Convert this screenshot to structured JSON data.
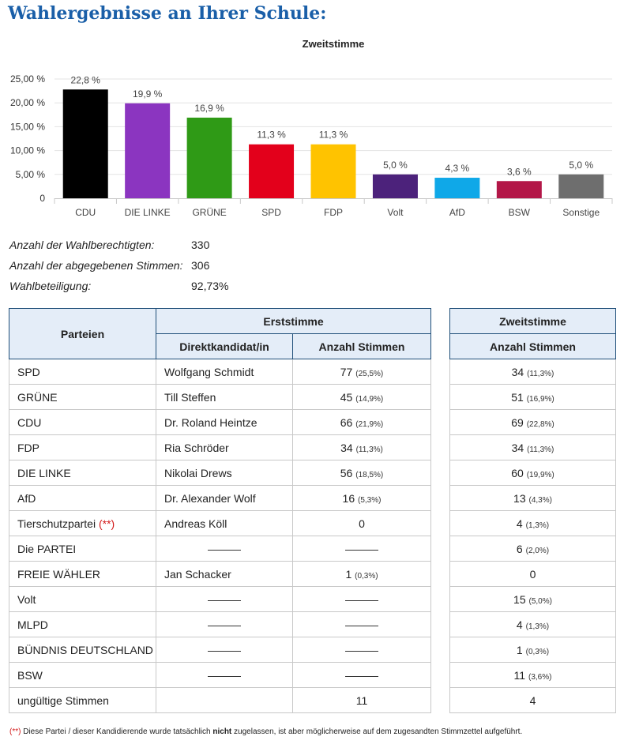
{
  "page": {
    "title": "Wahlergebnisse an Ihrer Schule:"
  },
  "chart_data": {
    "type": "bar",
    "title": "Zweitstimme",
    "categories": [
      "CDU",
      "DIE LINKE",
      "GRÜNE",
      "SPD",
      "FDP",
      "Volt",
      "AfD",
      "BSW",
      "Sonstige"
    ],
    "values": [
      22.8,
      19.9,
      16.9,
      11.3,
      11.3,
      5.0,
      4.3,
      3.6,
      5.0
    ],
    "value_labels": [
      "22,8 %",
      "19,9 %",
      "16,9 %",
      "11,3 %",
      "11,3 %",
      "5,0 %",
      "4,3 %",
      "3,6 %",
      "5,0 %"
    ],
    "colors": [
      "#000000",
      "#8b35c0",
      "#2f9a16",
      "#e3001b",
      "#ffc300",
      "#4c227b",
      "#0fa8e8",
      "#b31748",
      "#6e6e6e"
    ],
    "ylim": [
      0,
      25
    ],
    "yticks": [
      0,
      5,
      10,
      15,
      20,
      25
    ],
    "ytick_labels": [
      "0",
      "5,00 %",
      "10,00 %",
      "15,00 %",
      "20,00 %",
      "25,00 %"
    ],
    "xlabel": "",
    "ylabel": "",
    "grid": true
  },
  "stats": {
    "wahlberechtigte_label": "Anzahl der Wahlberechtigten:",
    "wahlberechtigte_value": "330",
    "stimmen_label": "Anzahl der abgegebenen Stimmen:",
    "stimmen_value": "306",
    "beteiligung_label": "Wahlbeteiligung:",
    "beteiligung_value": "92,73%"
  },
  "table": {
    "h_parteien": "Parteien",
    "h_erststimme": "Erststimme",
    "h_zweitstimme": "Zweitstimme",
    "h_kandidat": "Direktkandidat/in",
    "h_anzahl": "Anzahl Stimmen",
    "h_anzahl2": "Anzahl Stimmen",
    "rows": [
      {
        "partei": "SPD",
        "kandidat": "Wolfgang Schmidt",
        "e_val": "77",
        "e_pct": "(25,5%)",
        "z_val": "34",
        "z_pct": "(11,3%)",
        "mark": ""
      },
      {
        "partei": "GRÜNE",
        "kandidat": "Till Steffen",
        "e_val": "45",
        "e_pct": "(14,9%)",
        "z_val": "51",
        "z_pct": "(16,9%)",
        "mark": ""
      },
      {
        "partei": "CDU",
        "kandidat": "Dr. Roland Heintze",
        "e_val": "66",
        "e_pct": "(21,9%)",
        "z_val": "69",
        "z_pct": "(22,8%)",
        "mark": ""
      },
      {
        "partei": "FDP",
        "kandidat": "Ria Schröder",
        "e_val": "34",
        "e_pct": "(11,3%)",
        "z_val": "34",
        "z_pct": "(11,3%)",
        "mark": ""
      },
      {
        "partei": "DIE LINKE",
        "kandidat": "Nikolai Drews",
        "e_val": "56",
        "e_pct": "(18,5%)",
        "z_val": "60",
        "z_pct": "(19,9%)",
        "mark": ""
      },
      {
        "partei": "AfD",
        "kandidat": "Dr. Alexander Wolf",
        "e_val": "16",
        "e_pct": "(5,3%)",
        "z_val": "13",
        "z_pct": "(4,3%)",
        "mark": ""
      },
      {
        "partei": "Tierschutzpartei",
        "kandidat": "Andreas Köll",
        "e_val": "0",
        "e_pct": "",
        "z_val": "4",
        "z_pct": "(1,3%)",
        "mark": "(**)"
      },
      {
        "partei": "Die PARTEI",
        "kandidat": "———",
        "e_val": "———",
        "e_pct": "",
        "z_val": "6",
        "z_pct": "(2,0%)",
        "mark": ""
      },
      {
        "partei": "FREIE WÄHLER",
        "kandidat": "Jan Schacker",
        "e_val": "1",
        "e_pct": "(0,3%)",
        "z_val": "0",
        "z_pct": "",
        "mark": ""
      },
      {
        "partei": "Volt",
        "kandidat": "———",
        "e_val": "———",
        "e_pct": "",
        "z_val": "15",
        "z_pct": "(5,0%)",
        "mark": ""
      },
      {
        "partei": "MLPD",
        "kandidat": "———",
        "e_val": "———",
        "e_pct": "",
        "z_val": "4",
        "z_pct": "(1,3%)",
        "mark": ""
      },
      {
        "partei": "BÜNDNIS DEUTSCHLAND",
        "kandidat": "———",
        "e_val": "———",
        "e_pct": "",
        "z_val": "1",
        "z_pct": "(0,3%)",
        "mark": ""
      },
      {
        "partei": "BSW",
        "kandidat": "———",
        "e_val": "———",
        "e_pct": "",
        "z_val": "11",
        "z_pct": "(3,6%)",
        "mark": ""
      },
      {
        "partei": "ungültige Stimmen",
        "kandidat": "",
        "e_val": "11",
        "e_pct": "",
        "z_val": "4",
        "z_pct": "",
        "mark": ""
      }
    ]
  },
  "footnote": {
    "mark": "(**)",
    "text_before": " Diese Partei / dieser Kandidierende wurde tatsächlich ",
    "text_bold": "nicht",
    "text_after": " zugelassen, ist aber möglicherweise auf dem zugesandten Stimmzettel aufgeführt."
  }
}
